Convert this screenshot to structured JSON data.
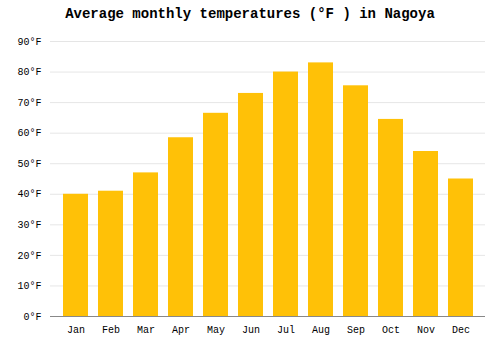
{
  "chart_data": {
    "type": "bar",
    "title": "Average monthly temperatures (°F ) in Nagoya",
    "categories": [
      "Jan",
      "Feb",
      "Mar",
      "Apr",
      "May",
      "Jun",
      "Jul",
      "Aug",
      "Sep",
      "Oct",
      "Nov",
      "Dec"
    ],
    "values": [
      40,
      41,
      47,
      58.5,
      66.5,
      73,
      80,
      83,
      75.5,
      64.5,
      54,
      45
    ],
    "color": "#FFC107",
    "ylim": [
      0,
      90
    ],
    "yticks": [
      {
        "value": 0,
        "label": "0°F"
      },
      {
        "value": 10,
        "label": "10°F"
      },
      {
        "value": 20,
        "label": "20°F"
      },
      {
        "value": 30,
        "label": "30°F"
      },
      {
        "value": 40,
        "label": "40°F"
      },
      {
        "value": 50,
        "label": "50°F"
      },
      {
        "value": 60,
        "label": "60°F"
      },
      {
        "value": 70,
        "label": "70°F"
      },
      {
        "value": 80,
        "label": "80°F"
      },
      {
        "value": 90,
        "label": "90°F"
      }
    ],
    "grid": true
  }
}
